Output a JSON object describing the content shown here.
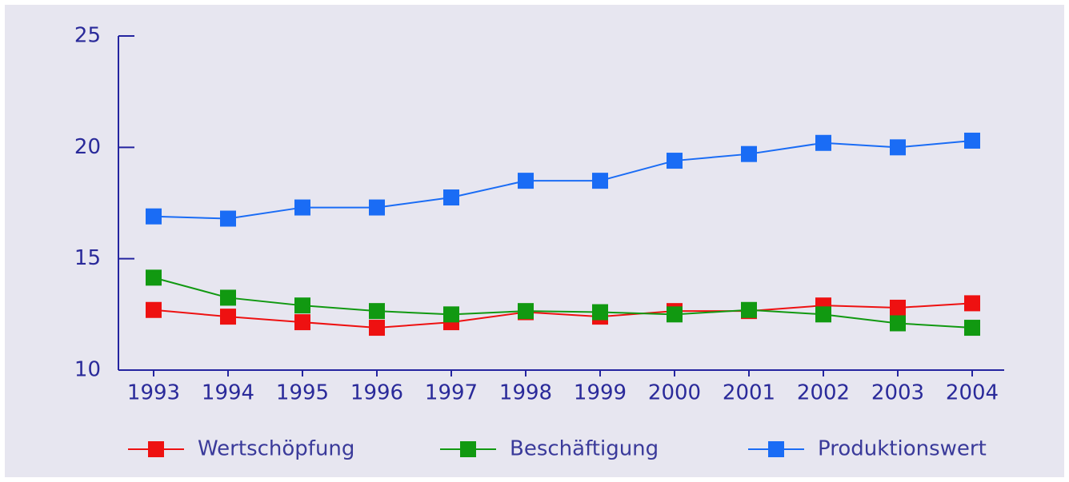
{
  "chart_data": {
    "type": "line",
    "categories": [
      "1993",
      "1994",
      "1995",
      "1996",
      "1997",
      "1998",
      "1999",
      "2000",
      "2001",
      "2002",
      "2003",
      "2004"
    ],
    "series": [
      {
        "name": "Wertschöpfung",
        "color": "#ee1111",
        "values": [
          12.7,
          12.4,
          12.15,
          11.9,
          12.15,
          12.6,
          12.4,
          12.65,
          12.65,
          12.9,
          12.8,
          13.0
        ]
      },
      {
        "name": "Beschäftigung",
        "color": "#119911",
        "values": [
          14.15,
          13.25,
          12.9,
          12.65,
          12.5,
          12.65,
          12.6,
          12.5,
          12.7,
          12.5,
          12.1,
          11.9
        ]
      },
      {
        "name": "Produktionswert",
        "color": "#1a6cf5",
        "values": [
          16.9,
          16.8,
          17.3,
          17.3,
          17.75,
          18.5,
          18.5,
          19.4,
          19.7,
          20.2,
          20.0,
          20.3
        ]
      }
    ],
    "ylim": [
      10,
      25
    ],
    "yticks": [
      10,
      15,
      20,
      25
    ],
    "grid": false,
    "legend": "bottom"
  }
}
